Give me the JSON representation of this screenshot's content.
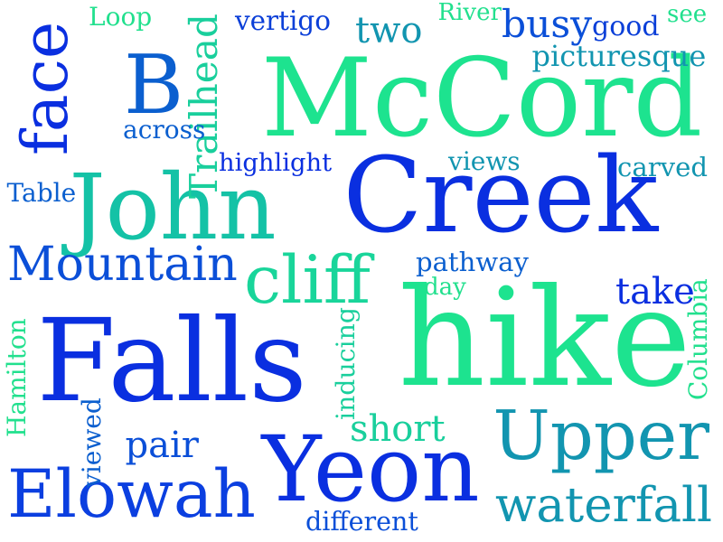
{
  "words": [
    {
      "text": "McCord",
      "color": "#1de38f"
    },
    {
      "text": "Creek",
      "color": "#0a2fe0"
    },
    {
      "text": "hike",
      "color": "#1de38f"
    },
    {
      "text": "Falls",
      "color": "#0a2fe0"
    },
    {
      "text": "John",
      "color": "#14c2a6"
    },
    {
      "text": "Yeon",
      "color": "#0a2fe0"
    },
    {
      "text": "B",
      "color": "#0b5fcf"
    },
    {
      "text": "Upper",
      "color": "#1295b0"
    },
    {
      "text": "Elowah",
      "color": "#0b3fe0"
    },
    {
      "text": "face",
      "color": "#0a2fe0"
    },
    {
      "text": "cliff",
      "color": "#19d59a"
    },
    {
      "text": "Mountain",
      "color": "#0b4fd8"
    },
    {
      "text": "waterfall",
      "color": "#1295b0"
    },
    {
      "text": "Trailhead",
      "color": "#19cf9c"
    },
    {
      "text": "two",
      "color": "#1295b0"
    },
    {
      "text": "busy",
      "color": "#0b4fd8"
    },
    {
      "text": "short",
      "color": "#19cf9c"
    },
    {
      "text": "take",
      "color": "#0a2fe0"
    },
    {
      "text": "pair",
      "color": "#0b4fd8"
    },
    {
      "text": "Loop",
      "color": "#22e08e"
    },
    {
      "text": "vertigo",
      "color": "#0b3fd8"
    },
    {
      "text": "River",
      "color": "#22e08e"
    },
    {
      "text": "good",
      "color": "#0b3fd8"
    },
    {
      "text": "see",
      "color": "#22e08e"
    },
    {
      "text": "picturesque",
      "color": "#1295b0"
    },
    {
      "text": "across",
      "color": "#0b5fcf"
    },
    {
      "text": "highlight",
      "color": "#0a2fe0"
    },
    {
      "text": "views",
      "color": "#1295b0"
    },
    {
      "text": "carved",
      "color": "#1295b0"
    },
    {
      "text": "Table",
      "color": "#0b5fcf"
    },
    {
      "text": "pathway",
      "color": "#0b5fcf"
    },
    {
      "text": "day",
      "color": "#22e08e"
    },
    {
      "text": "Columbia",
      "color": "#22e08e"
    },
    {
      "text": "Hamilton",
      "color": "#22e08e"
    },
    {
      "text": "inducing",
      "color": "#19cf9c"
    },
    {
      "text": "viewed",
      "color": "#0b5fcf"
    },
    {
      "text": "different",
      "color": "#0b4fd8"
    }
  ]
}
